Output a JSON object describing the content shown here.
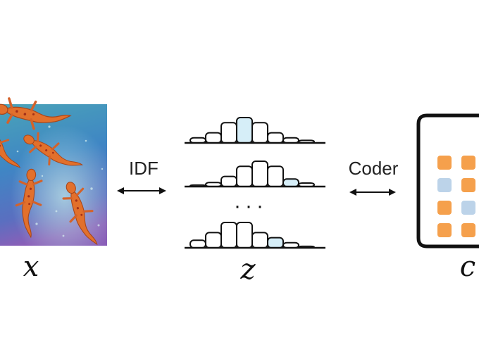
{
  "labels": {
    "x": "x",
    "z": "z",
    "c": "c",
    "idf": "IDF",
    "coder": "Coder",
    "ellipsis": "···"
  },
  "histograms": [
    {
      "bars": [
        1,
        2,
        4,
        5,
        4,
        2,
        1,
        0.5
      ],
      "highlight": [
        3
      ]
    },
    {
      "bars": [
        0.3,
        0.8,
        2,
        4,
        5,
        4,
        1.5,
        0.7
      ],
      "highlight": [
        6
      ]
    },
    {
      "bars": [
        1.5,
        3,
        5,
        5,
        3,
        2,
        1,
        0.3
      ],
      "highlight": [
        5
      ]
    }
  ],
  "code_grid": [
    [
      "orange",
      "orange"
    ],
    [
      "blue",
      "orange"
    ],
    [
      "orange",
      "blue"
    ],
    [
      "orange",
      "orange"
    ]
  ],
  "colors": {
    "orange": "#f5a04c",
    "blue": "#bcd3e9",
    "highlight": "#d6eef8",
    "stroke": "#111111"
  },
  "image_subject": "red-spotted newts swimming in blue-green water"
}
